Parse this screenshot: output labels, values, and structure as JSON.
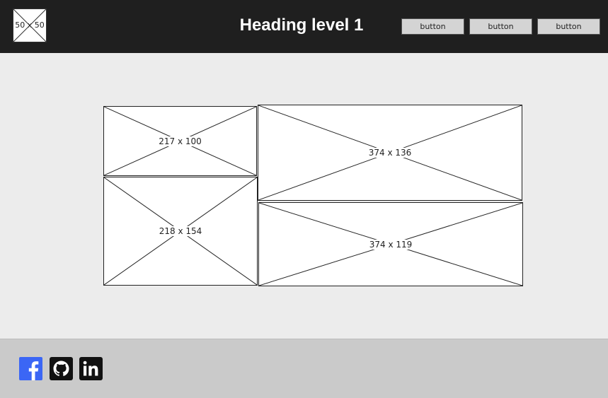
{
  "header": {
    "logo_label": "50 x 50",
    "title": "Heading level 1",
    "buttons": [
      "button",
      "button",
      "button"
    ]
  },
  "content": {
    "placeholders": [
      "217 x 100",
      "374 x 136",
      "218 x 154",
      "374 x 119"
    ]
  },
  "footer": {
    "social_icons": [
      "facebook-icon",
      "github-icon",
      "linkedin-icon"
    ]
  },
  "colors": {
    "header_bg": "#1f1f1f",
    "body_bg": "#ececec",
    "footer_bg": "#cacaca",
    "facebook": "#3b66f5",
    "button_bg": "#d4d4d4"
  }
}
